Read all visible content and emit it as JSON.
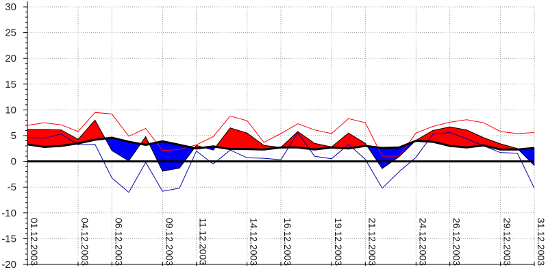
{
  "chart_data": {
    "type": "area",
    "title": "",
    "xlabel": "",
    "ylabel": "",
    "ylim": [
      -20,
      30
    ],
    "yticks": [
      30,
      25,
      20,
      15,
      10,
      5,
      0,
      -5,
      -10,
      -15,
      -20
    ],
    "grid": true,
    "days": [
      1,
      2,
      3,
      4,
      5,
      6,
      7,
      8,
      9,
      10,
      11,
      12,
      13,
      14,
      15,
      16,
      17,
      18,
      19,
      20,
      21,
      22,
      23,
      24,
      25,
      26,
      27,
      28,
      29,
      30,
      31
    ],
    "xtick_labels": [
      {
        "day": 1,
        "label": "01.12.2003"
      },
      {
        "day": 4,
        "label": "04.12.2003"
      },
      {
        "day": 6,
        "label": "06.12.2003"
      },
      {
        "day": 9,
        "label": "09.12.2003"
      },
      {
        "day": 11,
        "label": "11.12.2003"
      },
      {
        "day": 14,
        "label": "14.12.2003"
      },
      {
        "day": 16,
        "label": "16.12.2003"
      },
      {
        "day": 19,
        "label": "19.12.2003"
      },
      {
        "day": 21,
        "label": "21.12.2003"
      },
      {
        "day": 24,
        "label": "24.12.2003"
      },
      {
        "day": 26,
        "label": "26.12.2003"
      },
      {
        "day": 29,
        "label": "29.12.2003"
      },
      {
        "day": 31,
        "label": "31.12.2003"
      }
    ],
    "series": [
      {
        "key": "max",
        "values": [
          7.0,
          7.5,
          7.1,
          5.8,
          9.5,
          9.2,
          4.9,
          6.4,
          2.1,
          2.3,
          3.2,
          4.8,
          8.8,
          7.9,
          3.7,
          5.4,
          7.3,
          6.1,
          5.4,
          8.3,
          7.5,
          1.0,
          1.0,
          5.5,
          6.8,
          7.6,
          8.1,
          7.5,
          5.8,
          5.4,
          5.6
        ],
        "color": "#ff0000"
      },
      {
        "key": "mean",
        "values": [
          6.2,
          6.2,
          6.1,
          4.3,
          8.0,
          2.1,
          0.1,
          4.8,
          -1.9,
          -1.3,
          3.1,
          2.2,
          6.5,
          5.5,
          3.1,
          2.7,
          5.8,
          3.5,
          2.8,
          5.5,
          3.5,
          -1.4,
          0.9,
          4.1,
          6.0,
          6.7,
          6.1,
          4.6,
          3.4,
          2.5,
          -0.8
        ],
        "color": "#000000"
      },
      {
        "key": "min",
        "values": [
          4.6,
          4.5,
          5.3,
          3.2,
          3.3,
          -3.2,
          -6.0,
          -0.2,
          -5.8,
          -5.2,
          2.0,
          -0.5,
          2.2,
          0.7,
          0.6,
          0.3,
          5.6,
          1.0,
          0.5,
          3.3,
          0.4,
          -5.2,
          -2.0,
          0.8,
          5.3,
          5.6,
          4.4,
          3.0,
          1.7,
          1.6,
          -5.2
        ],
        "color": "#0000aa"
      },
      {
        "key": "normal",
        "values": [
          3.3,
          2.8,
          3.0,
          3.5,
          4.2,
          4.6,
          3.8,
          3.2,
          3.9,
          3.2,
          2.5,
          2.9,
          2.4,
          2.4,
          2.3,
          2.7,
          2.7,
          2.3,
          2.7,
          2.5,
          3.0,
          2.6,
          2.7,
          4.0,
          3.8,
          3.0,
          2.7,
          3.1,
          2.3,
          2.3,
          2.6
        ],
        "color": "#000000"
      }
    ],
    "fill_above_color": "#ff0000",
    "fill_below_color": "#0000ff",
    "zero_line": true
  }
}
